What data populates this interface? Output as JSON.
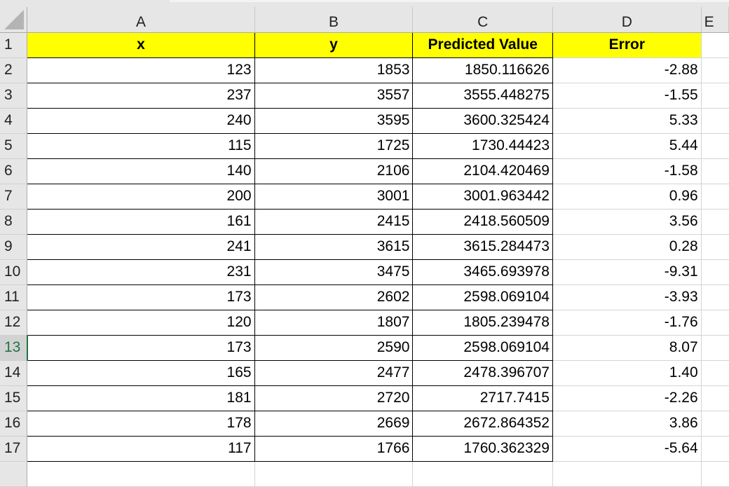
{
  "columns": [
    "A",
    "B",
    "C",
    "D",
    "E"
  ],
  "header_row": {
    "row_number": "1",
    "cells": [
      "x",
      "y",
      "Predicted Value",
      "Error"
    ]
  },
  "selected_row": "13",
  "header_fill": "#ffff00",
  "rows": [
    {
      "n": "2",
      "x": "123",
      "y": "1853",
      "pred": "1850.116626",
      "err": "-2.88"
    },
    {
      "n": "3",
      "x": "237",
      "y": "3557",
      "pred": "3555.448275",
      "err": "-1.55"
    },
    {
      "n": "4",
      "x": "240",
      "y": "3595",
      "pred": "3600.325424",
      "err": "5.33"
    },
    {
      "n": "5",
      "x": "115",
      "y": "1725",
      "pred": "1730.44423",
      "err": "5.44"
    },
    {
      "n": "6",
      "x": "140",
      "y": "2106",
      "pred": "2104.420469",
      "err": "-1.58"
    },
    {
      "n": "7",
      "x": "200",
      "y": "3001",
      "pred": "3001.963442",
      "err": "0.96"
    },
    {
      "n": "8",
      "x": "161",
      "y": "2415",
      "pred": "2418.560509",
      "err": "3.56"
    },
    {
      "n": "9",
      "x": "241",
      "y": "3615",
      "pred": "3615.284473",
      "err": "0.28"
    },
    {
      "n": "10",
      "x": "231",
      "y": "3475",
      "pred": "3465.693978",
      "err": "-9.31"
    },
    {
      "n": "11",
      "x": "173",
      "y": "2602",
      "pred": "2598.069104",
      "err": "-3.93"
    },
    {
      "n": "12",
      "x": "120",
      "y": "1807",
      "pred": "1805.239478",
      "err": "-1.76"
    },
    {
      "n": "13",
      "x": "173",
      "y": "2590",
      "pred": "2598.069104",
      "err": "8.07"
    },
    {
      "n": "14",
      "x": "165",
      "y": "2477",
      "pred": "2478.396707",
      "err": "1.40"
    },
    {
      "n": "15",
      "x": "181",
      "y": "2720",
      "pred": "2717.7415",
      "err": "-2.26"
    },
    {
      "n": "16",
      "x": "178",
      "y": "2669",
      "pred": "2672.864352",
      "err": "3.86"
    },
    {
      "n": "17",
      "x": "117",
      "y": "1766",
      "pred": "1760.362329",
      "err": "-5.64"
    }
  ]
}
